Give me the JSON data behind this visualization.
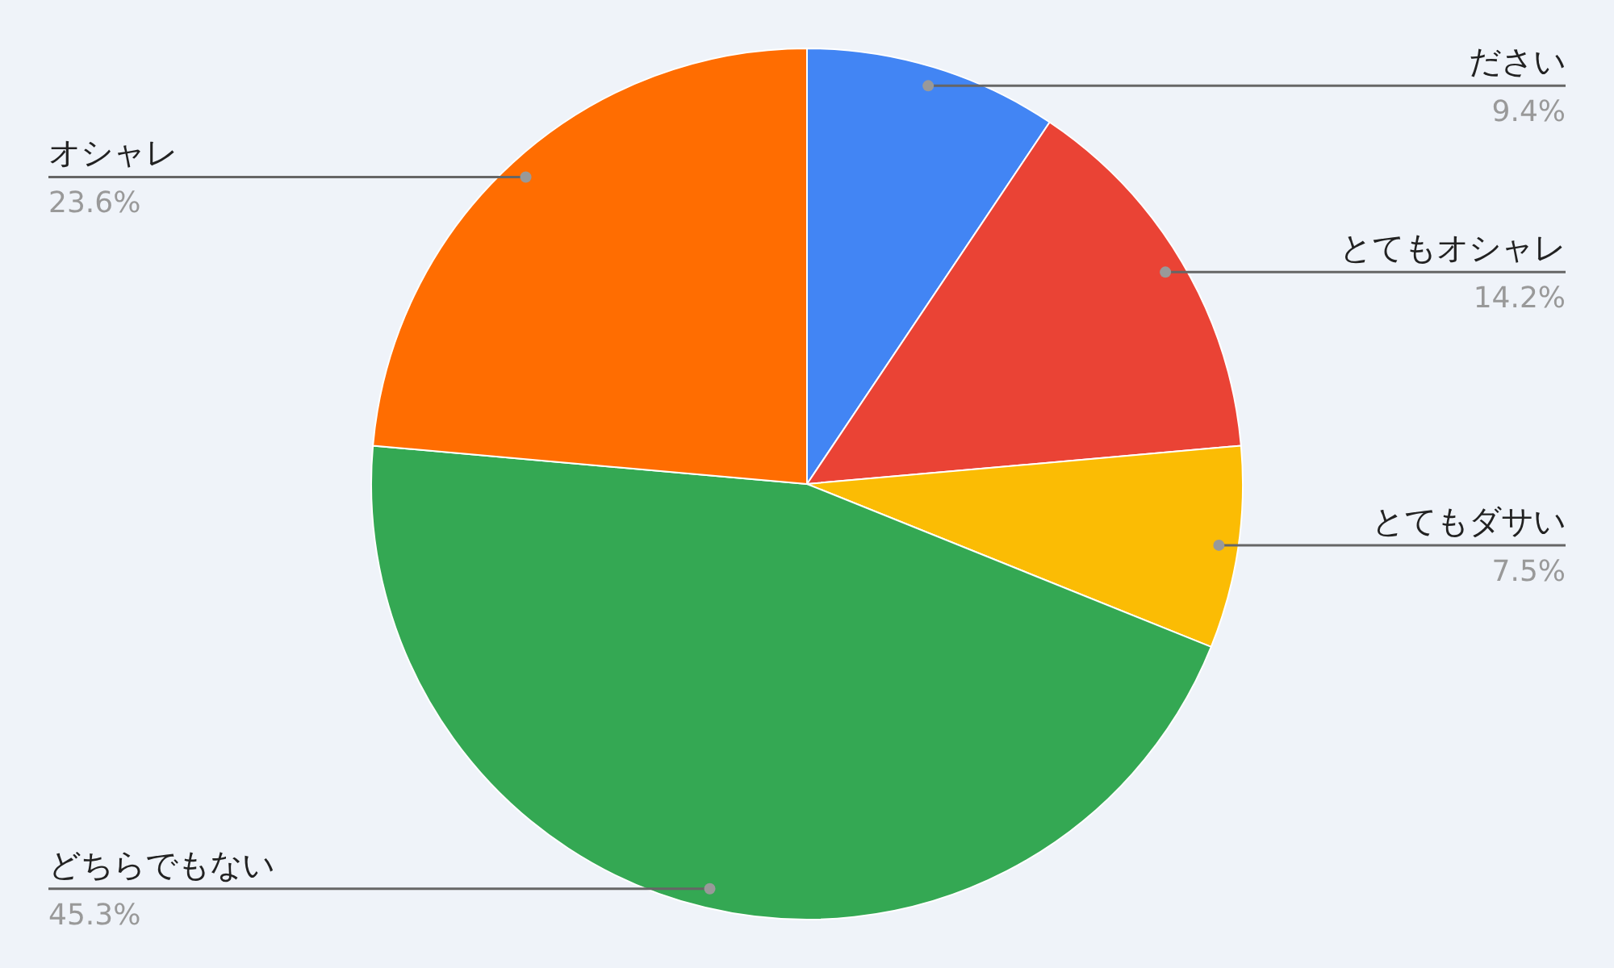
{
  "chart_data": {
    "type": "pie",
    "categories": [
      "ださい",
      "とてもオシャレ",
      "とてもダサい",
      "どちらでもない",
      "オシャレ"
    ],
    "values": [
      9.4,
      14.2,
      7.5,
      45.3,
      23.6
    ],
    "colors": [
      "#4285f4",
      "#ea4335",
      "#fbbc04",
      "#34a853",
      "#ff6d01"
    ],
    "value_labels": [
      "9.4%",
      "14.2%",
      "7.5%",
      "45.3%",
      "23.6%"
    ],
    "legend": false
  }
}
